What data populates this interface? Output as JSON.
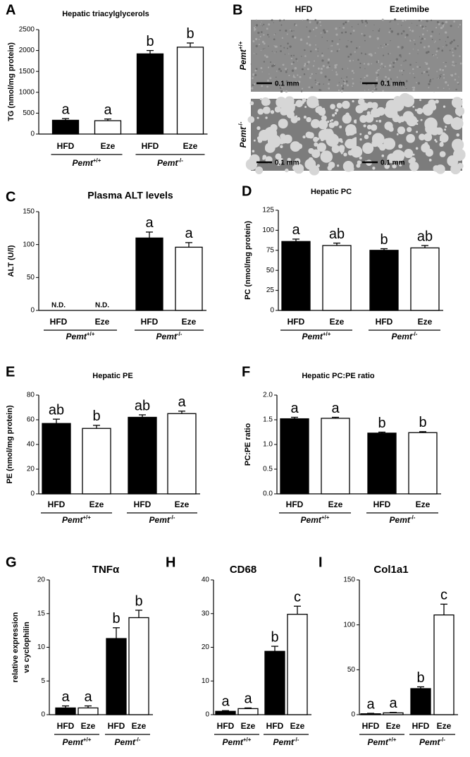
{
  "chart_data": [
    {
      "type": "bar",
      "panel": "A",
      "title": "Hepatic triacylglycerols",
      "ylabel": "TG (nmol/mg protein)",
      "categories": [
        "HFD",
        "Eze",
        "HFD",
        "Eze"
      ],
      "values": [
        330,
        320,
        1920,
        2080
      ],
      "errors": [
        40,
        40,
        80,
        100
      ],
      "colors": [
        "#000000",
        "#ffffff",
        "#000000",
        "#ffffff"
      ],
      "letters": [
        "a",
        "a",
        "b",
        "b"
      ],
      "groups": [
        {
          "name": "Pemt",
          "sup": "+/+"
        },
        {
          "name": "Pemt",
          "sup": "-/-"
        }
      ],
      "ylim": [
        0,
        2500
      ],
      "yticks": [
        0,
        500,
        1000,
        1500,
        2000,
        2500
      ]
    },
    {
      "type": "bar",
      "panel": "C",
      "title": "Plasma ALT levels",
      "ylabel": "ALT (U/l)",
      "categories": [
        "HFD",
        "Eze",
        "HFD",
        "Eze"
      ],
      "values": [
        null,
        null,
        110,
        96
      ],
      "value_labels": [
        "N.D.",
        "N.D.",
        null,
        null
      ],
      "errors": [
        null,
        null,
        9,
        7
      ],
      "colors": [
        "#000000",
        "#ffffff",
        "#000000",
        "#ffffff"
      ],
      "letters": [
        null,
        null,
        "a",
        "a"
      ],
      "groups": [
        {
          "name": "Pemt",
          "sup": "+/+"
        },
        {
          "name": "Pemt",
          "sup": "-/-"
        }
      ],
      "ylim": [
        0,
        150
      ],
      "yticks": [
        0,
        50,
        100,
        150
      ]
    },
    {
      "type": "bar",
      "panel": "D",
      "title": "Hepatic PC",
      "ylabel": "PC (nmol/mg protein)",
      "categories": [
        "HFD",
        "Eze",
        "HFD",
        "Eze"
      ],
      "values": [
        86,
        81,
        75,
        78
      ],
      "errors": [
        3,
        3,
        2,
        3
      ],
      "colors": [
        "#000000",
        "#ffffff",
        "#000000",
        "#ffffff"
      ],
      "letters": [
        "a",
        "ab",
        "b",
        "ab"
      ],
      "groups": [
        {
          "name": "Pemt",
          "sup": "+/+"
        },
        {
          "name": "Pemt",
          "sup": "-/-"
        }
      ],
      "ylim": [
        0,
        125
      ],
      "yticks": [
        0,
        25,
        50,
        75,
        100,
        125
      ]
    },
    {
      "type": "bar",
      "panel": "E",
      "title": "Hepatic PE",
      "ylabel": "PE (nmol/mg protein)",
      "categories": [
        "HFD",
        "Eze",
        "HFD",
        "Eze"
      ],
      "values": [
        57,
        53,
        62,
        65
      ],
      "errors": [
        3.5,
        2.5,
        2,
        2
      ],
      "colors": [
        "#000000",
        "#ffffff",
        "#000000",
        "#ffffff"
      ],
      "letters": [
        "ab",
        "b",
        "ab",
        "a"
      ],
      "groups": [
        {
          "name": "Pemt",
          "sup": "+/+"
        },
        {
          "name": "Pemt",
          "sup": "-/-"
        }
      ],
      "ylim": [
        0,
        80
      ],
      "yticks": [
        0,
        20,
        40,
        60,
        80
      ]
    },
    {
      "type": "bar",
      "panel": "F",
      "title": "Hepatic PC:PE ratio",
      "ylabel": "PC:PE ratio",
      "categories": [
        "HFD",
        "Eze",
        "HFD",
        "Eze"
      ],
      "values": [
        1.52,
        1.53,
        1.23,
        1.24
      ],
      "errors": [
        0.03,
        0.02,
        0.02,
        0.02
      ],
      "colors": [
        "#000000",
        "#ffffff",
        "#000000",
        "#ffffff"
      ],
      "letters": [
        "a",
        "a",
        "b",
        "b"
      ],
      "groups": [
        {
          "name": "Pemt",
          "sup": "+/+"
        },
        {
          "name": "Pemt",
          "sup": "-/-"
        }
      ],
      "ylim": [
        0,
        2.0
      ],
      "yticks": [
        {
          "value": 0,
          "label": "0.0"
        },
        {
          "value": 0.5,
          "label": "0.5"
        },
        {
          "value": 1,
          "label": "1.0"
        },
        {
          "value": 1.5,
          "label": "1.5"
        },
        {
          "value": 2,
          "label": "2.0"
        }
      ]
    },
    {
      "type": "bar",
      "panel": "G",
      "title": "TNFα",
      "ylabel": [
        "relative expression",
        "vs cyclophilin"
      ],
      "categories": [
        "HFD",
        "Eze",
        "HFD",
        "Eze"
      ],
      "values": [
        1.0,
        1.0,
        11.3,
        14.4
      ],
      "errors": [
        0.3,
        0.3,
        1.6,
        1.1
      ],
      "colors": [
        "#000000",
        "#ffffff",
        "#000000",
        "#ffffff"
      ],
      "letters": [
        "a",
        "a",
        "b",
        "b"
      ],
      "groups": [
        {
          "name": "Pemt",
          "sup": "+/+"
        },
        {
          "name": "Pemt",
          "sup": "-/-"
        }
      ],
      "ylim": [
        0,
        20
      ],
      "yticks": [
        0,
        5,
        10,
        15,
        20
      ]
    },
    {
      "type": "bar",
      "panel": "H",
      "title": "CD68",
      "categories": [
        "HFD",
        "Eze",
        "HFD",
        "Eze"
      ],
      "values": [
        1.0,
        1.8,
        18.8,
        29.8
      ],
      "errors": [
        0.2,
        0.2,
        1.5,
        2.4
      ],
      "colors": [
        "#000000",
        "#ffffff",
        "#000000",
        "#ffffff"
      ],
      "letters": [
        "a",
        "a",
        "b",
        "c"
      ],
      "groups": [
        {
          "name": "Pemt",
          "sup": "+/+"
        },
        {
          "name": "Pemt",
          "sup": "-/-"
        }
      ],
      "ylim": [
        0,
        40
      ],
      "yticks": [
        0,
        10,
        20,
        30,
        40
      ]
    },
    {
      "type": "bar",
      "panel": "I",
      "title": "Col1a1",
      "categories": [
        "HFD",
        "Eze",
        "HFD",
        "Eze"
      ],
      "values": [
        1,
        2,
        29,
        111
      ],
      "errors": [
        0.5,
        0.5,
        2,
        12
      ],
      "colors": [
        "#000000",
        "#ffffff",
        "#000000",
        "#ffffff"
      ],
      "letters": [
        "a",
        "a",
        "b",
        "c"
      ],
      "groups": [
        {
          "name": "Pemt",
          "sup": "+/+"
        },
        {
          "name": "Pemt",
          "sup": "-/-"
        }
      ],
      "ylim": [
        0,
        150
      ],
      "yticks": [
        0,
        50,
        100,
        150
      ]
    }
  ],
  "panel_b": {
    "panel": "B",
    "columns": [
      "HFD",
      "Ezetimibe"
    ],
    "rows": [
      {
        "name": "Pemt",
        "sup": "+/+"
      },
      {
        "name": "Pemt",
        "sup": "-/-"
      }
    ],
    "scale_label": "0.1 mm"
  }
}
